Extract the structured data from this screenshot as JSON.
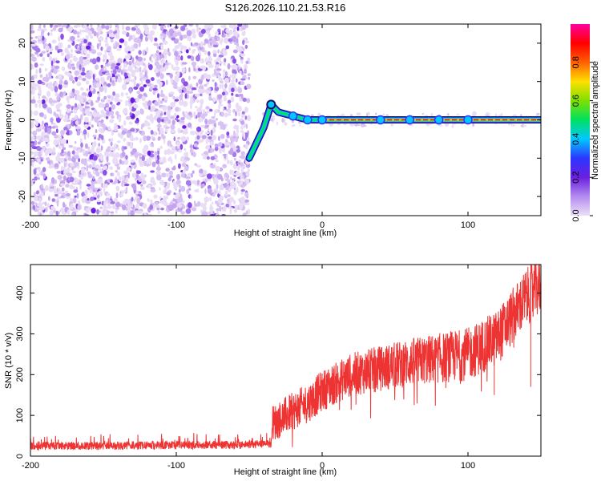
{
  "title": "S126.2026.110.21.53.R16",
  "chart_data": [
    {
      "type": "heatmap",
      "title": "S126.2026.110.21.53.R16",
      "xlabel": "Height of straight line (km)",
      "ylabel": "Frequency (Hz)",
      "xlim": [
        -200,
        150
      ],
      "ylim": [
        -25,
        25
      ],
      "x_ticks": [
        -200,
        -100,
        0,
        100
      ],
      "y_ticks": [
        -20,
        -10,
        0,
        10,
        20
      ],
      "colorbar": {
        "label": "Normalized spectral amplitude",
        "range": [
          0.0,
          1.0
        ],
        "ticks": [
          "0.0",
          "0.2",
          "0.4",
          "0.6",
          "0.8"
        ],
        "colors": [
          "#ece0f6",
          "#7a2ee6",
          "#2c36ff",
          "#00c8ff",
          "#00e060",
          "#b8e000",
          "#ffd000",
          "#ff6000",
          "#ff0000",
          "#ff0090"
        ]
      },
      "noise_region_x": [
        -200,
        -50
      ],
      "signal_track": [
        {
          "x": -50,
          "y": -10,
          "amp": 0.45
        },
        {
          "x": -45,
          "y": -6,
          "amp": 0.4
        },
        {
          "x": -40,
          "y": -2,
          "amp": 0.4
        },
        {
          "x": -35,
          "y": 4,
          "amp": 0.35
        },
        {
          "x": -30,
          "y": 2,
          "amp": 0.5
        },
        {
          "x": -20,
          "y": 1,
          "amp": 0.65
        },
        {
          "x": -10,
          "y": 0,
          "amp": 0.5
        },
        {
          "x": 0,
          "y": 0,
          "amp": 0.8
        },
        {
          "x": 50,
          "y": 0,
          "amp": 0.9
        },
        {
          "x": 100,
          "y": 0,
          "amp": 0.85
        },
        {
          "x": 150,
          "y": 0,
          "amp": 0.9
        }
      ]
    },
    {
      "type": "line",
      "xlabel": "Height of straight line (km)",
      "ylabel": "SNR (10 * v/v)",
      "xlim": [
        -200,
        150
      ],
      "ylim": [
        0,
        470
      ],
      "x_ticks": [
        -200,
        -100,
        0,
        100
      ],
      "y_ticks": [
        0,
        100,
        200,
        300,
        400
      ],
      "series": [
        {
          "name": "SNR",
          "color": "#ee3333",
          "x": [
            -200,
            -150,
            -100,
            -60,
            -35,
            -34,
            -20,
            -10,
            0,
            20,
            40,
            60,
            80,
            100,
            120,
            140,
            150
          ],
          "values": [
            25,
            25,
            27,
            28,
            30,
            80,
            110,
            130,
            160,
            200,
            215,
            230,
            240,
            250,
            290,
            390,
            420
          ]
        }
      ]
    }
  ]
}
